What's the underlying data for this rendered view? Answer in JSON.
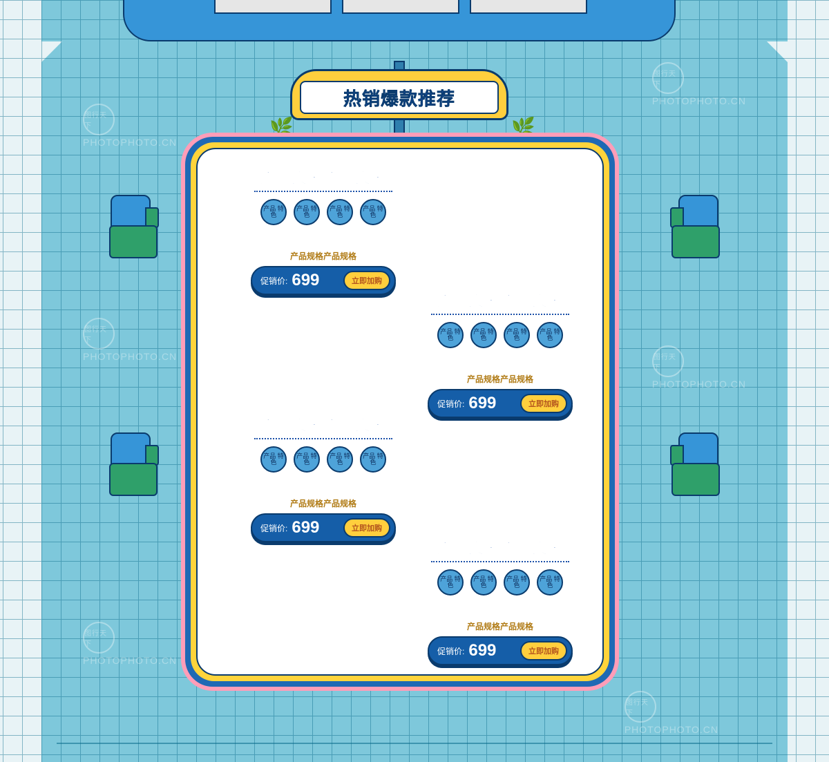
{
  "colors": {
    "page_bg": "#7ec8db",
    "grid_line": "#0a6b8a",
    "gutter": "#e8f3f6",
    "slab": "#3695d8",
    "outline": "#0a3b6d",
    "sign_bg": "#ffcf3d",
    "frame_pink": "#ff9db8",
    "frame_blue": "#1f69b4",
    "frame_yellow": "#ffd43b",
    "frame_inner": "#ffffff",
    "dot_bg": "#4ea3d9",
    "pill_bg": "#155ea8",
    "btn_bg": "#ffcf3d",
    "btn_text": "#b3541e",
    "mailbox": "#2fa06a",
    "title_text": "#1a4fa8",
    "spec_text": "#b17c17"
  },
  "header": {
    "section_title": "热销爆款推荐"
  },
  "feature_pill_text": "产品\n特色",
  "spec_text": "产品规格产品规格",
  "prod_title": "产品文案产品文案",
  "price_label": "促销价:",
  "buy_button": "立即加购",
  "products": [
    {
      "price": "699"
    },
    {
      "price": "699"
    },
    {
      "price": "699"
    },
    {
      "price": "699"
    }
  ],
  "watermark_text": "PHOTOPHOTO.CN",
  "watermark_seal": "图行天下"
}
